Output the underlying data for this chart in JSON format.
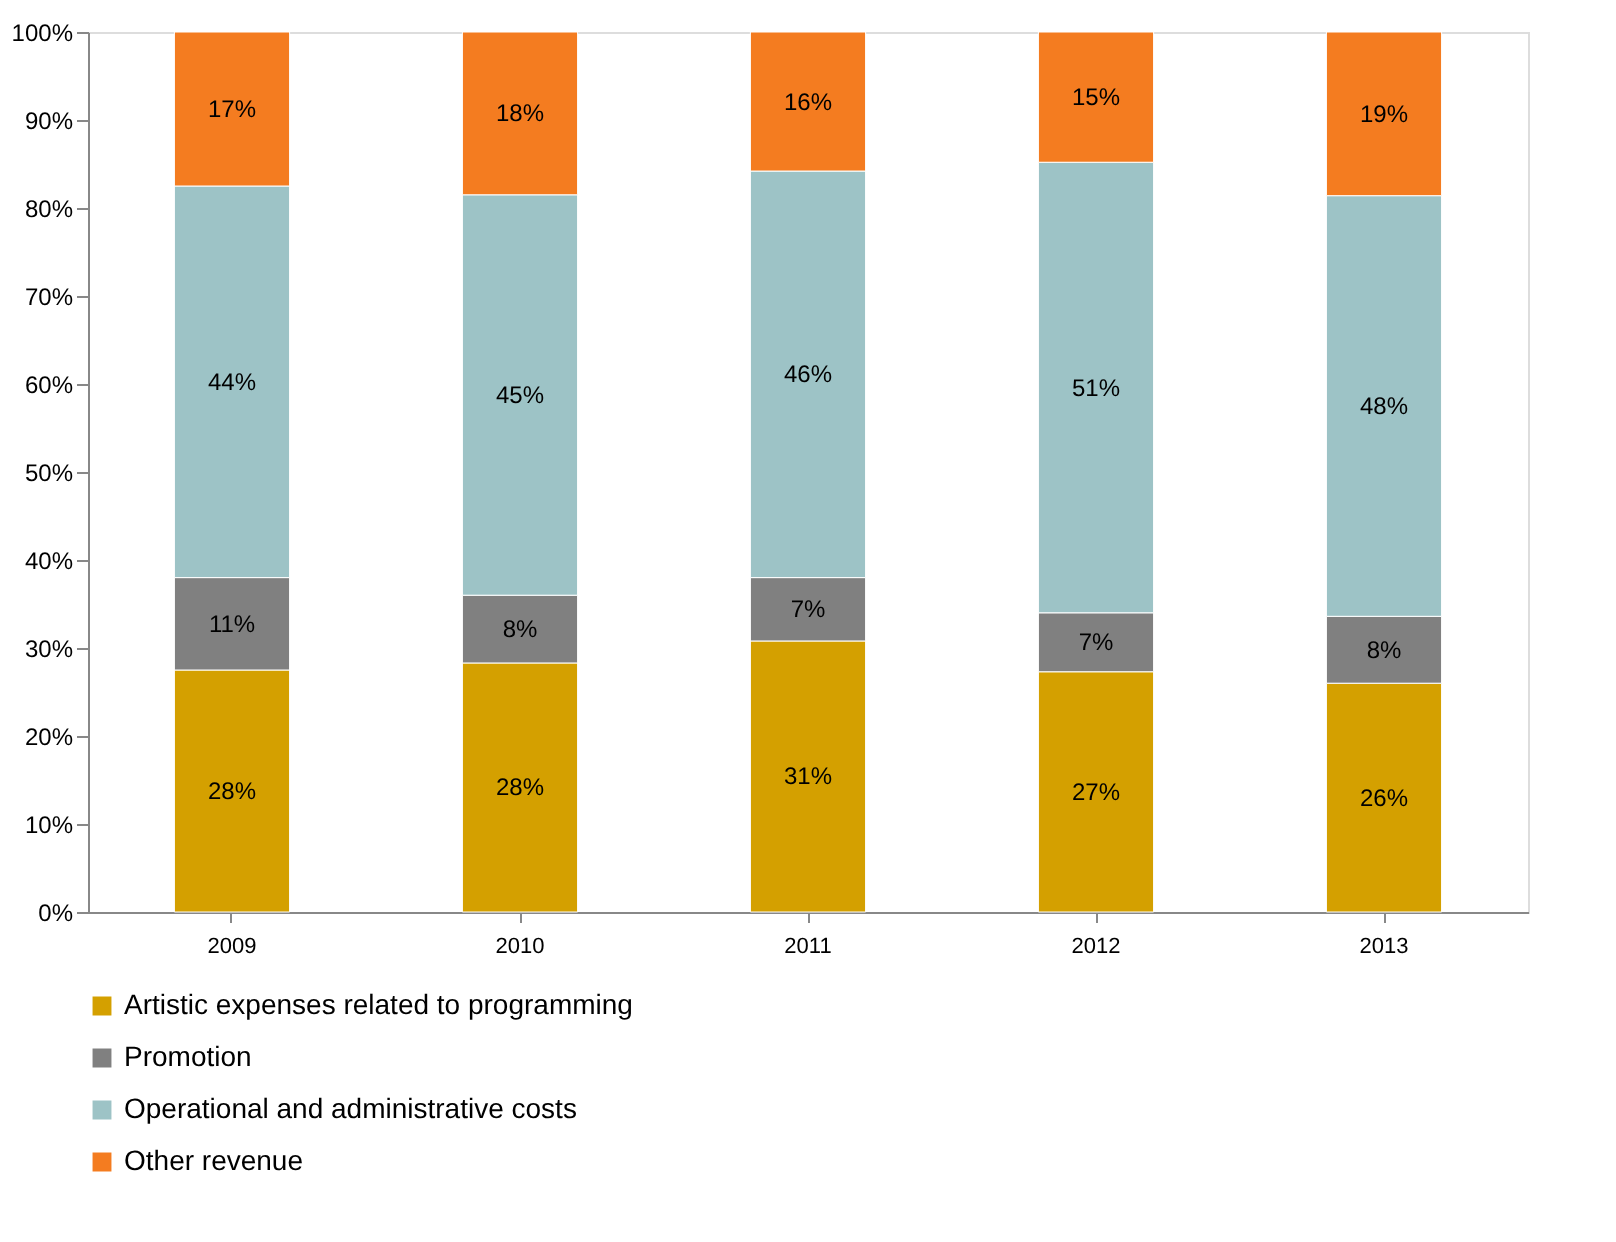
{
  "chart_data": {
    "type": "bar",
    "stacked": true,
    "categories": [
      "2009",
      "2010",
      "2011",
      "2012",
      "2013"
    ],
    "series": [
      {
        "name": "Artistic expenses related to programming",
        "color": "#d4a000",
        "values": [
          27.5,
          28.3,
          30.8,
          27.3,
          26.0
        ],
        "value_labels": [
          "28%",
          "28%",
          "31%",
          "27%",
          "26%"
        ]
      },
      {
        "name": "Promotion",
        "color": "#808080",
        "values": [
          10.5,
          7.7,
          7.2,
          6.7,
          7.6
        ],
        "value_labels": [
          "11%",
          "8%",
          "7%",
          "7%",
          "8%"
        ]
      },
      {
        "name": "Operational and administrative costs",
        "color": "#9dc3c6",
        "values": [
          44.5,
          45.5,
          46.2,
          51.2,
          47.8
        ],
        "value_labels": [
          "44%",
          "45%",
          "46%",
          "51%",
          "48%"
        ]
      },
      {
        "name": "Other revenue",
        "color": "#f47c20",
        "values": [
          17.5,
          18.5,
          15.8,
          14.8,
          18.6
        ],
        "value_labels": [
          "17%",
          "18%",
          "16%",
          "15%",
          "19%"
        ]
      }
    ],
    "ylim": [
      0,
      100
    ],
    "yticks": [
      {
        "value": 0,
        "label": "0%"
      },
      {
        "value": 10,
        "label": "10%"
      },
      {
        "value": 20,
        "label": "20%"
      },
      {
        "value": 30,
        "label": "30%"
      },
      {
        "value": 40,
        "label": "40%"
      },
      {
        "value": 50,
        "label": "50%"
      },
      {
        "value": 60,
        "label": "60%"
      },
      {
        "value": 70,
        "label": "70%"
      },
      {
        "value": 80,
        "label": "80%"
      },
      {
        "value": 90,
        "label": "90%"
      },
      {
        "value": 100,
        "label": "100%"
      }
    ],
    "grid": false,
    "legend": "bottom"
  }
}
